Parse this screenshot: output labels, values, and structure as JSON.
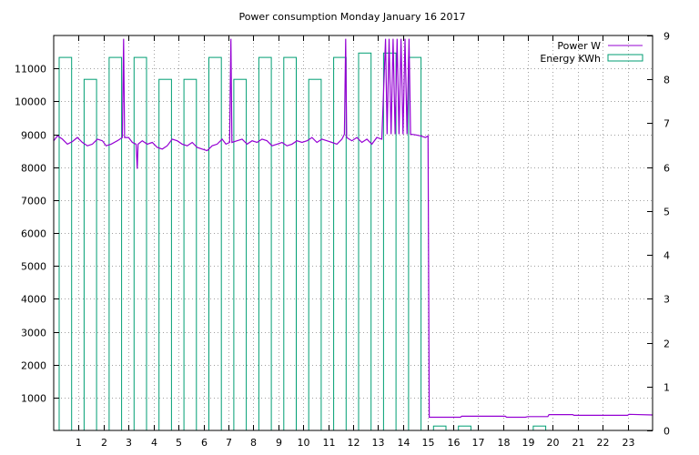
{
  "chart_data": {
    "type": "line",
    "title": "Power consumption Monday January 16 2017",
    "xlabel": "",
    "ylabel": "",
    "y2label": "",
    "xlim": [
      0,
      24
    ],
    "ylim": [
      0,
      12000
    ],
    "y2lim": [
      0,
      9
    ],
    "x_ticks": [
      1,
      2,
      3,
      4,
      5,
      6,
      7,
      8,
      9,
      10,
      11,
      12,
      13,
      14,
      15,
      16,
      17,
      18,
      19,
      20,
      21,
      22,
      23
    ],
    "y_ticks": [
      1000,
      2000,
      3000,
      4000,
      5000,
      6000,
      7000,
      8000,
      9000,
      10000,
      11000
    ],
    "y2_ticks": [
      0,
      1,
      2,
      3,
      4,
      5,
      6,
      7,
      8,
      9
    ],
    "grid": true,
    "legend_position": "top-right",
    "colors": {
      "power": "#9400d3",
      "energy": "#009e73"
    },
    "series": [
      {
        "name": "Power W",
        "axis": "y",
        "points": [
          [
            0.0,
            8800
          ],
          [
            0.15,
            8950
          ],
          [
            0.35,
            8850
          ],
          [
            0.55,
            8700
          ],
          [
            0.75,
            8780
          ],
          [
            0.95,
            8900
          ],
          [
            1.15,
            8750
          ],
          [
            1.35,
            8650
          ],
          [
            1.55,
            8700
          ],
          [
            1.75,
            8850
          ],
          [
            1.95,
            8800
          ],
          [
            2.1,
            8650
          ],
          [
            2.3,
            8700
          ],
          [
            2.55,
            8800
          ],
          [
            2.75,
            8900
          ],
          [
            2.8,
            11900
          ],
          [
            2.84,
            8900
          ],
          [
            3.0,
            8900
          ],
          [
            3.15,
            8750
          ],
          [
            3.3,
            8700
          ],
          [
            3.35,
            7950
          ],
          [
            3.38,
            8700
          ],
          [
            3.55,
            8800
          ],
          [
            3.75,
            8700
          ],
          [
            3.95,
            8750
          ],
          [
            4.15,
            8600
          ],
          [
            4.35,
            8550
          ],
          [
            4.55,
            8650
          ],
          [
            4.75,
            8850
          ],
          [
            4.95,
            8800
          ],
          [
            5.15,
            8700
          ],
          [
            5.35,
            8650
          ],
          [
            5.55,
            8750
          ],
          [
            5.75,
            8600
          ],
          [
            5.95,
            8550
          ],
          [
            6.15,
            8500
          ],
          [
            6.35,
            8650
          ],
          [
            6.55,
            8700
          ],
          [
            6.75,
            8850
          ],
          [
            6.9,
            8700
          ],
          [
            7.05,
            8750
          ],
          [
            7.1,
            11900
          ],
          [
            7.14,
            8750
          ],
          [
            7.35,
            8800
          ],
          [
            7.55,
            8850
          ],
          [
            7.75,
            8700
          ],
          [
            7.95,
            8800
          ],
          [
            8.15,
            8750
          ],
          [
            8.35,
            8850
          ],
          [
            8.55,
            8800
          ],
          [
            8.75,
            8650
          ],
          [
            8.95,
            8700
          ],
          [
            9.15,
            8750
          ],
          [
            9.35,
            8650
          ],
          [
            9.55,
            8700
          ],
          [
            9.75,
            8800
          ],
          [
            9.95,
            8750
          ],
          [
            10.15,
            8800
          ],
          [
            10.35,
            8900
          ],
          [
            10.55,
            8750
          ],
          [
            10.75,
            8850
          ],
          [
            10.95,
            8800
          ],
          [
            11.15,
            8750
          ],
          [
            11.35,
            8700
          ],
          [
            11.55,
            8850
          ],
          [
            11.65,
            9000
          ],
          [
            11.7,
            11900
          ],
          [
            11.74,
            8900
          ],
          [
            11.95,
            8800
          ],
          [
            12.15,
            8900
          ],
          [
            12.35,
            8750
          ],
          [
            12.55,
            8850
          ],
          [
            12.75,
            8700
          ],
          [
            12.95,
            8900
          ],
          [
            13.15,
            8850
          ],
          [
            13.3,
            11900
          ],
          [
            13.36,
            9000
          ],
          [
            13.44,
            11900
          ],
          [
            13.52,
            9000
          ],
          [
            13.6,
            11900
          ],
          [
            13.68,
            9000
          ],
          [
            13.76,
            11900
          ],
          [
            13.84,
            9000
          ],
          [
            13.92,
            11900
          ],
          [
            14.0,
            9000
          ],
          [
            14.08,
            11900
          ],
          [
            14.16,
            9000
          ],
          [
            14.24,
            11900
          ],
          [
            14.3,
            9000
          ],
          [
            14.5,
            8980
          ],
          [
            14.7,
            8950
          ],
          [
            14.9,
            8900
          ],
          [
            15.0,
            8950
          ],
          [
            15.05,
            400
          ],
          [
            16.3,
            400
          ],
          [
            16.35,
            430
          ],
          [
            18.1,
            430
          ],
          [
            18.15,
            400
          ],
          [
            18.9,
            400
          ],
          [
            19.0,
            420
          ],
          [
            19.8,
            420
          ],
          [
            19.85,
            480
          ],
          [
            20.8,
            480
          ],
          [
            20.85,
            460
          ],
          [
            23.0,
            460
          ],
          [
            23.05,
            490
          ],
          [
            24.0,
            470
          ]
        ]
      },
      {
        "name": "Energy KWh",
        "axis": "y2",
        "hours": [
          0,
          1,
          2,
          3,
          4,
          5,
          6,
          7,
          8,
          9,
          10,
          11,
          12,
          13,
          14,
          15,
          16,
          17,
          18,
          19,
          20,
          21,
          22,
          23
        ],
        "values": [
          8.5,
          8.0,
          8.5,
          8.5,
          8.0,
          8.0,
          8.5,
          8.0,
          8.5,
          8.5,
          8.0,
          8.5,
          8.6,
          8.6,
          8.5,
          0.1,
          0.1,
          0.0,
          0.0,
          0.1,
          0.0,
          0.0,
          0.0,
          0.0
        ]
      }
    ]
  }
}
